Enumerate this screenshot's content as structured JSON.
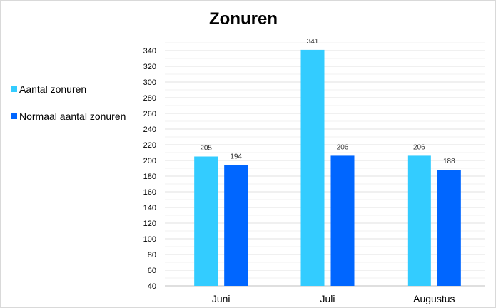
{
  "chart_data": {
    "type": "bar",
    "title": "Zonuren",
    "categories": [
      "Juni",
      "Juli",
      "Augustus"
    ],
    "series": [
      {
        "name": "Aantal zonuren",
        "values": [
          205,
          341,
          206
        ],
        "color": "#33ccff"
      },
      {
        "name": "Normaal aantal zonuren",
        "values": [
          194,
          206,
          188
        ],
        "color": "#0066ff"
      }
    ],
    "ylim": [
      40,
      350
    ],
    "yticks": [
      40,
      60,
      80,
      100,
      120,
      140,
      160,
      180,
      200,
      220,
      240,
      260,
      280,
      300,
      320,
      340
    ],
    "grid": true,
    "data_labels": true,
    "legend_position": "left",
    "xlabel": "",
    "ylabel": ""
  }
}
